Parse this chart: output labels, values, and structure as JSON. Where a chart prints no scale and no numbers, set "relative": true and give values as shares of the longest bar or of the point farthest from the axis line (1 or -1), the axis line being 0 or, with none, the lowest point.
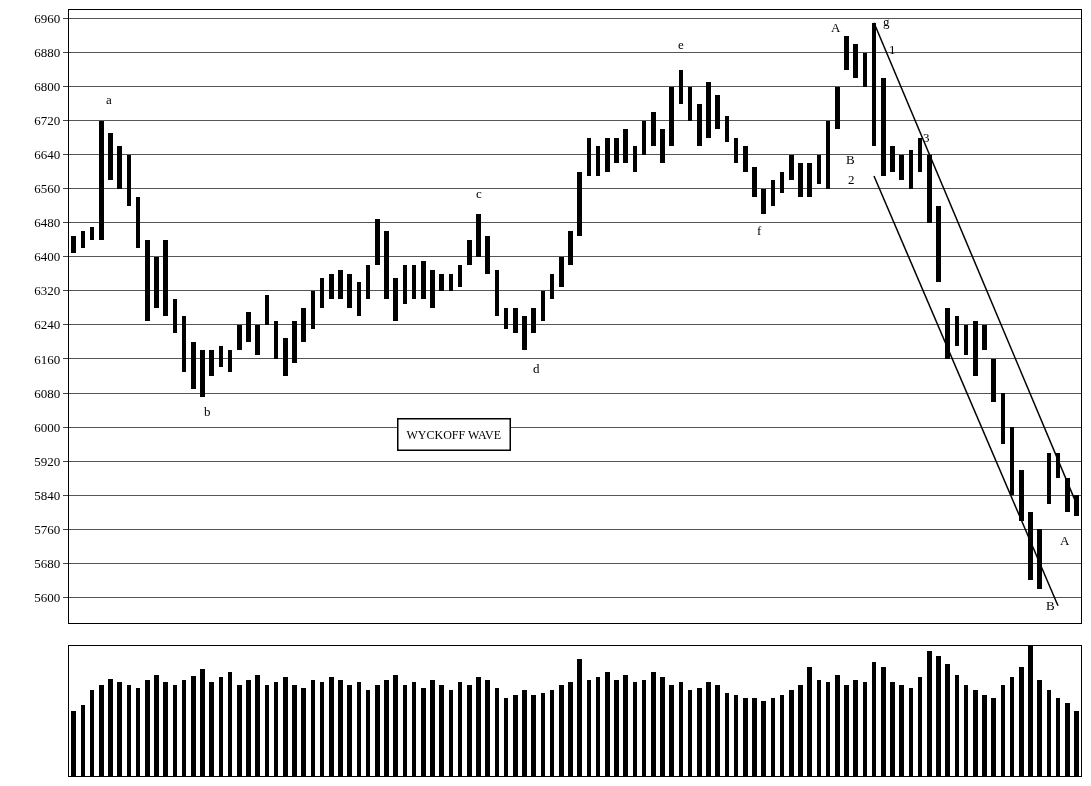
{
  "chart_data": [
    {
      "type": "bar",
      "categories": [
        null,
        null,
        null,
        null,
        null,
        null,
        null,
        null,
        null,
        null,
        null,
        null,
        null,
        null,
        null,
        null,
        null,
        null,
        null,
        null,
        null,
        null,
        null,
        null,
        null,
        null,
        null,
        null,
        null,
        null,
        null,
        null,
        null,
        null,
        null,
        null,
        null,
        null,
        null,
        null,
        null,
        null,
        null,
        null,
        null,
        null,
        null,
        null,
        null,
        null,
        null,
        null,
        null,
        null,
        null,
        null,
        null,
        null,
        null,
        null,
        null,
        null,
        null,
        null,
        null,
        null,
        null,
        null,
        null,
        null,
        null,
        null,
        null,
        null,
        null,
        null,
        null,
        null,
        null,
        null,
        null,
        null,
        null,
        null,
        null,
        null,
        null,
        null,
        null,
        null,
        null,
        null,
        null,
        null,
        null,
        null,
        null,
        null,
        null,
        null,
        null,
        null,
        null,
        null,
        null,
        null,
        null,
        null,
        null,
        null
      ],
      "base": [
        6410,
        6420,
        6440,
        6440,
        6580,
        6560,
        6520,
        6420,
        6250,
        6280,
        6260,
        6220,
        6130,
        6090,
        6070,
        6120,
        6140,
        6130,
        6180,
        6200,
        6170,
        6240,
        6160,
        6120,
        6150,
        6200,
        6230,
        6280,
        6300,
        6300,
        6280,
        6260,
        6300,
        6380,
        6300,
        6250,
        6290,
        6300,
        6300,
        6280,
        6320,
        6320,
        6330,
        6380,
        6400,
        6360,
        6260,
        6230,
        6220,
        6180,
        6220,
        6250,
        6300,
        6330,
        6380,
        6450,
        6590,
        6590,
        6600,
        6620,
        6620,
        6600,
        6640,
        6660,
        6620,
        6660,
        6760,
        6720,
        6660,
        6680,
        6700,
        6670,
        6620,
        6600,
        6540,
        6500,
        6520,
        6550,
        6580,
        6540,
        6540,
        6570,
        6560,
        6700,
        6840,
        6820,
        6800,
        6660,
        6590,
        6600,
        6580,
        6560,
        6600,
        6480,
        6340,
        6160,
        6190,
        6170,
        6120,
        6180,
        6060,
        5960,
        5840,
        5780,
        5640,
        5620,
        5820,
        5880,
        5800,
        5790
      ],
      "values": [
        40,
        40,
        30,
        280,
        110,
        100,
        120,
        120,
        190,
        120,
        180,
        80,
        130,
        110,
        110,
        60,
        50,
        50,
        60,
        70,
        70,
        70,
        90,
        90,
        100,
        80,
        90,
        70,
        60,
        70,
        80,
        80,
        80,
        110,
        160,
        100,
        90,
        80,
        90,
        90,
        40,
        40,
        50,
        60,
        100,
        90,
        110,
        50,
        60,
        80,
        60,
        70,
        60,
        70,
        80,
        150,
        90,
        70,
        80,
        60,
        80,
        60,
        80,
        80,
        80,
        140,
        80,
        80,
        100,
        130,
        80,
        60,
        60,
        60,
        70,
        60,
        60,
        50,
        60,
        80,
        80,
        70,
        160,
        100,
        80,
        80,
        80,
        290,
        230,
        60,
        60,
        90,
        80,
        160,
        180,
        120,
        70,
        70,
        130,
        60,
        100,
        120,
        160,
        120,
        160,
        140,
        120,
        60,
        80,
        50
      ],
      "color": "#000000",
      "ylim": [
        5540,
        6980
      ],
      "yticks": [
        5600,
        5680,
        5760,
        5840,
        5920,
        6000,
        6080,
        6160,
        6240,
        6320,
        6400,
        6480,
        6560,
        6640,
        6720,
        6800,
        6880,
        6960
      ],
      "grid": "y",
      "tick_labels": "y",
      "series": [
        {
          "type": "line",
          "color": "#000000",
          "values": [
            null,
            null,
            null,
            null,
            null,
            null,
            null,
            null,
            null,
            null,
            null,
            null,
            null,
            null,
            null,
            null,
            null,
            null,
            null,
            null,
            null,
            null,
            null,
            null,
            null,
            null,
            null,
            null,
            null,
            null,
            null,
            null,
            null,
            null,
            null,
            null,
            null,
            null,
            null,
            null,
            null,
            null,
            null,
            null,
            null,
            null,
            null,
            null,
            null,
            null,
            null,
            null,
            null,
            null,
            null,
            null,
            null,
            null,
            null,
            null,
            null,
            null,
            null,
            null,
            null,
            null,
            null,
            null,
            null,
            null,
            null,
            null,
            null,
            null,
            null,
            null,
            null,
            null,
            null,
            null,
            null,
            null,
            null,
            null,
            null,
            null,
            null,
            6950,
            null,
            null,
            null,
            null,
            null,
            null,
            null,
            null,
            null,
            null,
            null,
            null,
            null,
            null,
            null,
            null,
            null,
            null,
            null,
            null,
            null,
            5820
          ]
        },
        {
          "type": "line",
          "color": "#000000",
          "values": [
            null,
            null,
            null,
            null,
            null,
            null,
            null,
            null,
            null,
            null,
            null,
            null,
            null,
            null,
            null,
            null,
            null,
            null,
            null,
            null,
            null,
            null,
            null,
            null,
            null,
            null,
            null,
            null,
            null,
            null,
            null,
            null,
            null,
            null,
            null,
            null,
            null,
            null,
            null,
            null,
            null,
            null,
            null,
            null,
            null,
            null,
            null,
            null,
            null,
            null,
            null,
            null,
            null,
            null,
            null,
            null,
            null,
            null,
            null,
            null,
            null,
            null,
            null,
            null,
            null,
            null,
            null,
            null,
            null,
            null,
            null,
            null,
            null,
            null,
            null,
            null,
            null,
            null,
            null,
            null,
            null,
            null,
            null,
            null,
            null,
            null,
            null,
            6590,
            null,
            null,
            null,
            null,
            null,
            null,
            null,
            null,
            null,
            null,
            null,
            null,
            null,
            null,
            null,
            null,
            null,
            null,
            null,
            5580,
            null,
            null
          ]
        }
      ],
      "annotations": [
        "WYCKOFF WAVE",
        "a",
        "b",
        "c",
        "d",
        "e",
        "f",
        "g",
        "A",
        "1",
        "B",
        "2",
        "3",
        "A",
        "B"
      ]
    },
    {
      "type": "bar",
      "relative": true,
      "color": "#000000",
      "categories": [
        null,
        null,
        null,
        null,
        null,
        null,
        null,
        null,
        null,
        null,
        null,
        null,
        null,
        null,
        null,
        null,
        null,
        null,
        null,
        null,
        null,
        null,
        null,
        null,
        null,
        null,
        null,
        null,
        null,
        null,
        null,
        null,
        null,
        null,
        null,
        null,
        null,
        null,
        null,
        null,
        null,
        null,
        null,
        null,
        null,
        null,
        null,
        null,
        null,
        null,
        null,
        null,
        null,
        null,
        null,
        null,
        null,
        null,
        null,
        null,
        null,
        null,
        null,
        null,
        null,
        null,
        null,
        null,
        null,
        null,
        null,
        null,
        null,
        null,
        null,
        null,
        null,
        null,
        null,
        null,
        null,
        null,
        null,
        null,
        null,
        null,
        null,
        null,
        null,
        null,
        null,
        null,
        null,
        null,
        null,
        null,
        null,
        null,
        null,
        null,
        null,
        null,
        null,
        null,
        null,
        null,
        null,
        null,
        null,
        null
      ],
      "values": [
        0.5,
        0.55,
        0.66,
        0.7,
        0.75,
        0.72,
        0.7,
        0.68,
        0.74,
        0.78,
        0.72,
        0.7,
        0.74,
        0.77,
        0.82,
        0.72,
        0.76,
        0.8,
        0.7,
        0.74,
        0.78,
        0.7,
        0.72,
        0.76,
        0.7,
        0.68,
        0.74,
        0.72,
        0.76,
        0.74,
        0.7,
        0.72,
        0.66,
        0.7,
        0.74,
        0.78,
        0.7,
        0.72,
        0.68,
        0.74,
        0.7,
        0.66,
        0.72,
        0.7,
        0.76,
        0.74,
        0.68,
        0.6,
        0.62,
        0.66,
        0.62,
        0.64,
        0.66,
        0.7,
        0.72,
        0.9,
        0.74,
        0.76,
        0.8,
        0.74,
        0.78,
        0.72,
        0.74,
        0.8,
        0.76,
        0.7,
        0.72,
        0.66,
        0.68,
        0.72,
        0.7,
        0.64,
        0.62,
        0.6,
        0.6,
        0.58,
        0.6,
        0.62,
        0.66,
        0.7,
        0.84,
        0.74,
        0.72,
        0.78,
        0.7,
        0.74,
        0.72,
        0.88,
        0.84,
        0.72,
        0.7,
        0.68,
        0.76,
        0.96,
        0.92,
        0.86,
        0.78,
        0.7,
        0.66,
        0.62,
        0.6,
        0.7,
        0.76,
        0.84,
        1.0,
        0.74,
        0.66,
        0.6,
        0.56,
        0.5
      ]
    }
  ]
}
